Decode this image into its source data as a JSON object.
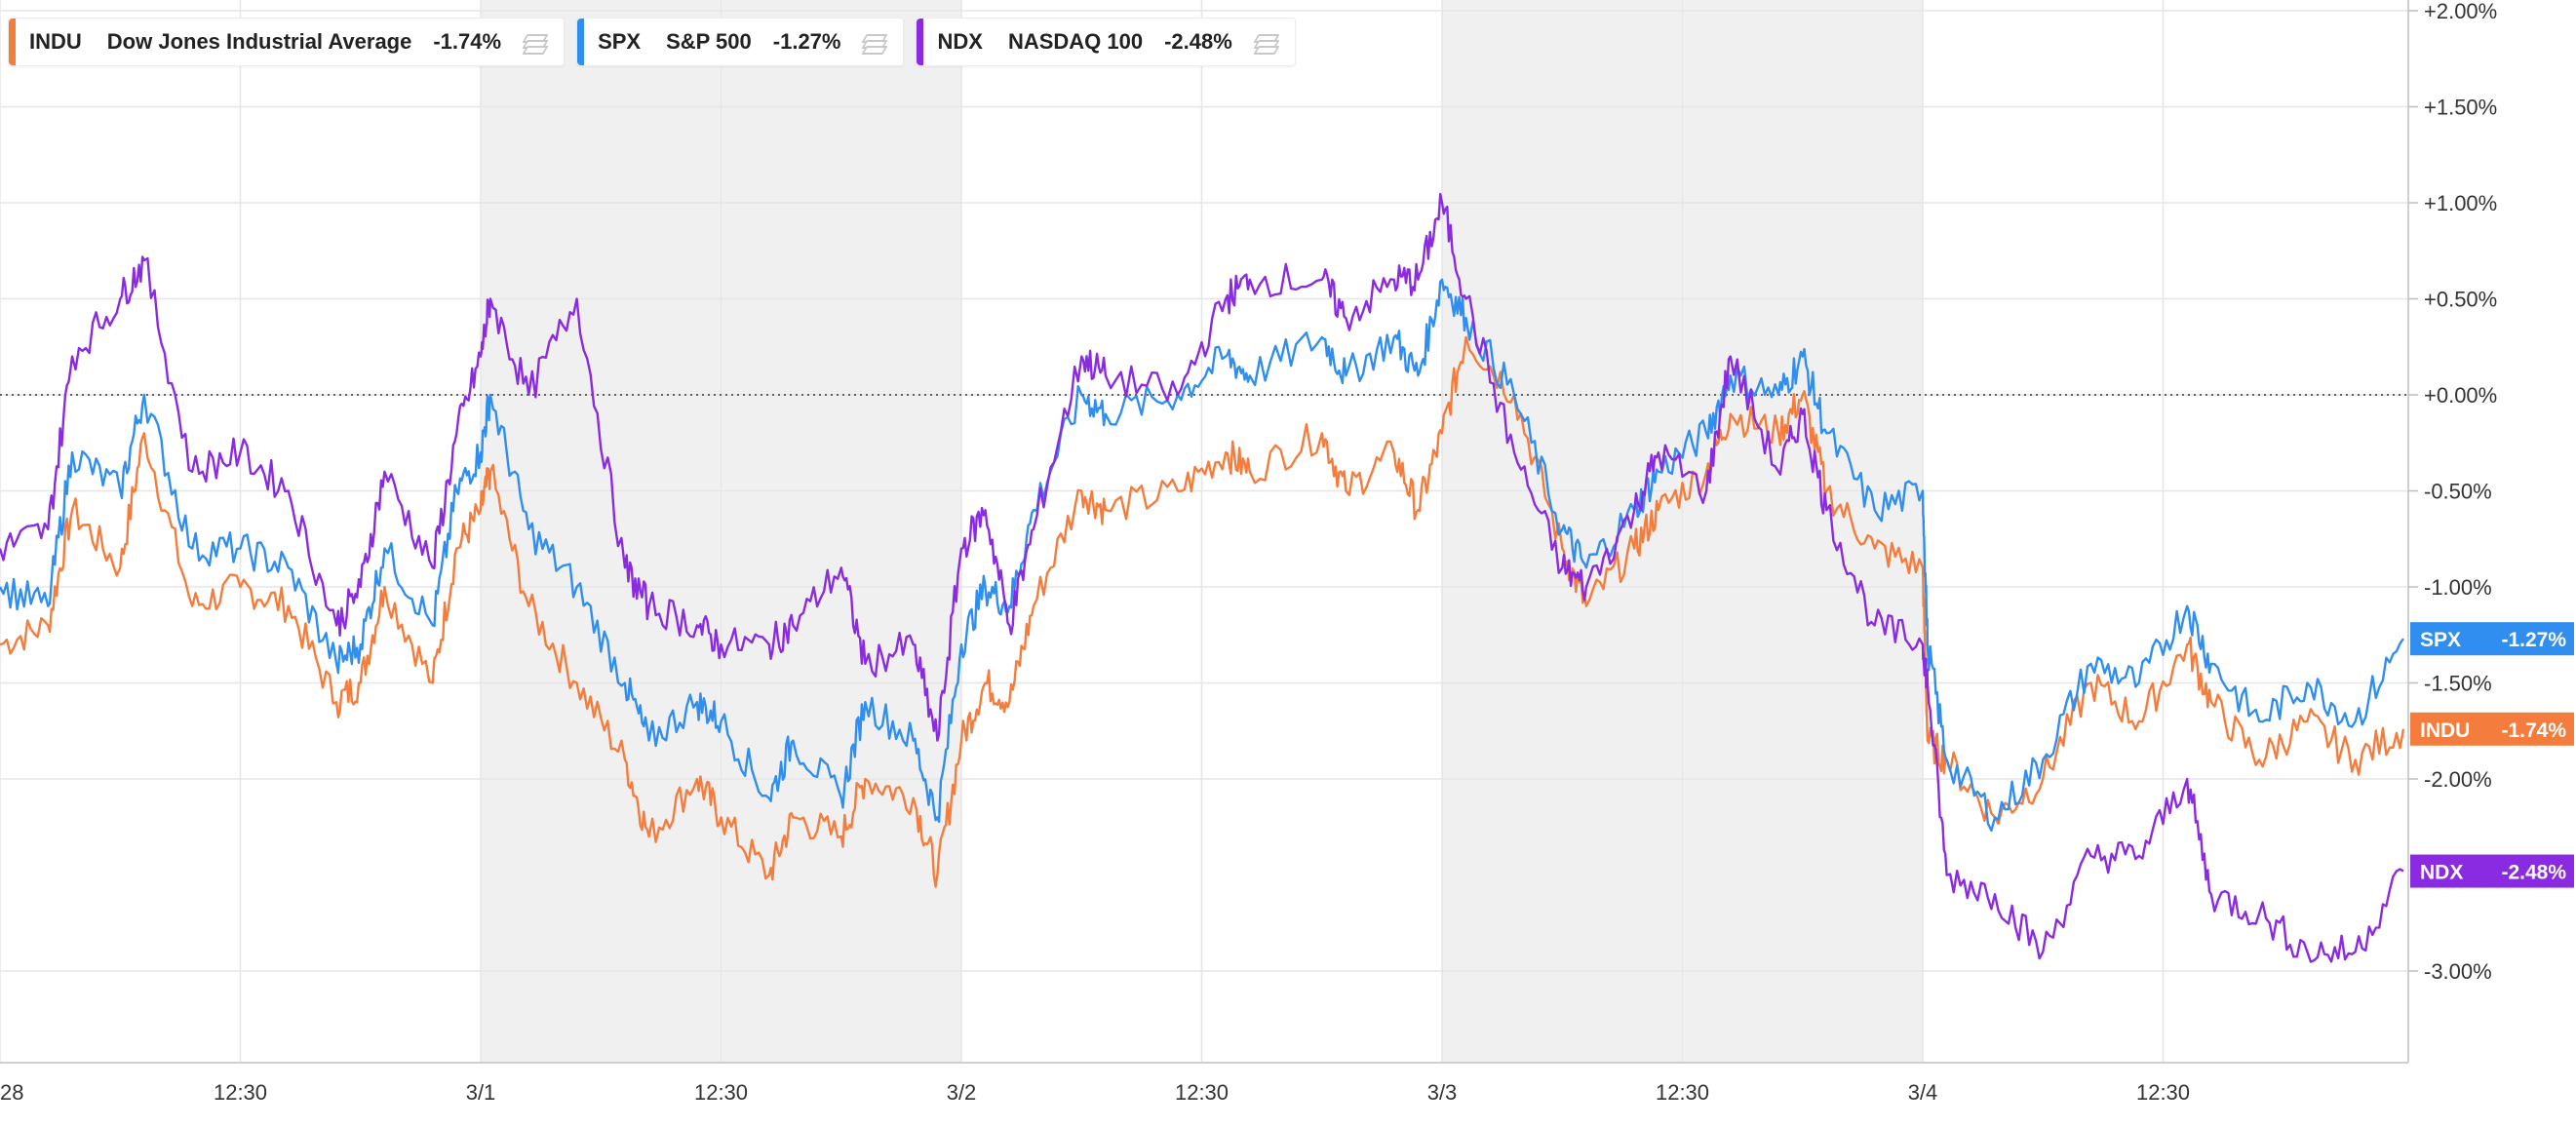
{
  "legend": [
    {
      "symbol": "INDU",
      "name": "Dow Jones Industrial Average",
      "change": "-1.74%",
      "color": "#f47c3c"
    },
    {
      "symbol": "SPX",
      "name": "S&P 500",
      "change": "-1.27%",
      "color": "#2f8ef0"
    },
    {
      "symbol": "NDX",
      "name": "NASDAQ 100",
      "change": "-2.48%",
      "color": "#8a2be2"
    }
  ],
  "chart_data": {
    "type": "line",
    "x_ticks": [
      "28",
      "12:30",
      "3/1",
      "12:30",
      "3/2",
      "12:30",
      "3/3",
      "12:30",
      "3/4",
      "12:30"
    ],
    "y_ticks": [
      "+2.00%",
      "+1.50%",
      "+1.00%",
      "+0.50%",
      "+0.00%",
      "-0.50%",
      "-1.00%",
      "-1.50%",
      "-2.00%",
      "-3.00%"
    ],
    "ylim": [
      -3.5,
      2.0
    ],
    "grid": true,
    "shaded_sessions": [
      [
        1.0,
        2.0
      ],
      [
        3.0,
        4.0
      ]
    ],
    "xlim": [
      0,
      5
    ],
    "series": [
      {
        "name": "INDU",
        "color": "#f47c3c",
        "last_label": "-1.74%",
        "x": [
          0,
          0.1,
          0.15,
          0.25,
          0.3,
          0.4,
          0.5,
          0.6,
          0.7,
          0.75,
          0.8,
          0.9,
          0.95,
          1.0,
          1.02,
          1.1,
          1.2,
          1.3,
          1.35,
          1.45,
          1.5,
          1.6,
          1.65,
          1.75,
          1.8,
          1.9,
          1.95,
          2.0,
          2.05,
          2.1,
          2.15,
          2.25,
          2.3,
          2.45,
          2.55,
          2.6,
          2.75,
          2.8,
          2.9,
          2.95,
          3.0,
          3.05,
          3.15,
          3.25,
          3.3,
          3.4,
          3.45,
          3.55,
          3.6,
          3.7,
          3.75,
          3.8,
          3.9,
          4.0,
          4.01,
          4.05,
          4.15,
          4.25,
          4.35,
          4.45,
          4.55,
          4.6,
          4.7,
          4.8,
          4.9,
          5.0
        ],
        "y": [
          -1.3,
          -1.2,
          -0.6,
          -0.9,
          -0.2,
          -1.1,
          -1.0,
          -1.1,
          -1.6,
          -1.5,
          -1.0,
          -1.5,
          -0.8,
          -0.6,
          -0.4,
          -1.1,
          -1.5,
          -1.9,
          -2.3,
          -2.0,
          -2.2,
          -2.5,
          -2.2,
          -2.3,
          -2.0,
          -2.1,
          -2.5,
          -1.8,
          -1.5,
          -1.6,
          -1.1,
          -0.5,
          -0.6,
          -0.5,
          -0.3,
          -0.4,
          -0.2,
          -0.5,
          -0.3,
          -0.6,
          -0.2,
          0.3,
          0.0,
          -0.8,
          -1.1,
          -0.8,
          -0.6,
          -0.4,
          -0.1,
          -0.2,
          0.0,
          -0.5,
          -0.8,
          -0.9,
          -1.8,
          -1.9,
          -2.2,
          -2.0,
          -1.5,
          -1.7,
          -1.3,
          -1.6,
          -1.9,
          -1.7,
          -1.9,
          -1.74
        ]
      },
      {
        "name": "SPX",
        "color": "#2f8ef0",
        "last_label": "-1.27%",
        "x": [
          0,
          0.1,
          0.15,
          0.25,
          0.3,
          0.4,
          0.5,
          0.6,
          0.7,
          0.75,
          0.8,
          0.9,
          0.95,
          1.0,
          1.02,
          1.1,
          1.2,
          1.3,
          1.35,
          1.45,
          1.5,
          1.6,
          1.65,
          1.75,
          1.8,
          1.9,
          1.95,
          2.0,
          2.05,
          2.1,
          2.15,
          2.25,
          2.3,
          2.45,
          2.55,
          2.6,
          2.75,
          2.8,
          2.9,
          2.95,
          3.0,
          3.05,
          3.15,
          3.25,
          3.3,
          3.4,
          3.45,
          3.55,
          3.6,
          3.7,
          3.75,
          3.8,
          3.9,
          4.0,
          4.01,
          4.05,
          4.15,
          4.25,
          4.35,
          4.45,
          4.55,
          4.6,
          4.7,
          4.8,
          4.9,
          5.0
        ],
        "y": [
          -1.0,
          -1.1,
          -0.3,
          -0.5,
          0.0,
          -0.8,
          -0.8,
          -0.9,
          -1.4,
          -1.3,
          -0.8,
          -1.2,
          -0.5,
          -0.3,
          0.0,
          -0.7,
          -1.0,
          -1.5,
          -1.8,
          -1.6,
          -1.7,
          -2.1,
          -1.8,
          -2.1,
          -1.6,
          -1.8,
          -2.2,
          -1.3,
          -1.0,
          -1.1,
          -0.6,
          0.0,
          -0.1,
          0.0,
          0.2,
          0.1,
          0.3,
          0.1,
          0.3,
          0.1,
          0.6,
          0.4,
          0.0,
          -0.7,
          -0.9,
          -0.6,
          -0.4,
          -0.2,
          0.1,
          0.0,
          0.2,
          -0.2,
          -0.6,
          -0.5,
          -1.3,
          -1.9,
          -2.2,
          -1.9,
          -1.4,
          -1.5,
          -1.1,
          -1.4,
          -1.7,
          -1.5,
          -1.7,
          -1.27
        ]
      },
      {
        "name": "NDX",
        "color": "#8a2be2",
        "last_label": "-2.48%",
        "x": [
          0,
          0.1,
          0.15,
          0.25,
          0.3,
          0.4,
          0.5,
          0.6,
          0.7,
          0.75,
          0.8,
          0.9,
          0.95,
          1.0,
          1.02,
          1.1,
          1.2,
          1.3,
          1.35,
          1.45,
          1.5,
          1.6,
          1.65,
          1.75,
          1.8,
          1.9,
          1.95,
          2.0,
          2.05,
          2.1,
          2.15,
          2.25,
          2.3,
          2.45,
          2.55,
          2.6,
          2.75,
          2.8,
          2.9,
          2.95,
          3.0,
          3.05,
          3.15,
          3.25,
          3.3,
          3.4,
          3.45,
          3.55,
          3.6,
          3.7,
          3.75,
          3.8,
          3.9,
          4.0,
          4.01,
          4.05,
          4.15,
          4.25,
          4.35,
          4.45,
          4.55,
          4.6,
          4.7,
          4.8,
          4.9,
          5.0
        ],
        "y": [
          -0.8,
          -0.7,
          0.2,
          0.5,
          0.7,
          -0.4,
          -0.3,
          -0.5,
          -1.2,
          -1.0,
          -0.4,
          -0.9,
          -0.2,
          0.2,
          0.5,
          0.0,
          0.5,
          -0.9,
          -1.1,
          -1.2,
          -1.3,
          -1.3,
          -1.2,
          -0.9,
          -1.4,
          -1.3,
          -1.8,
          -0.8,
          -0.6,
          -1.2,
          -0.7,
          0.2,
          0.1,
          0.0,
          0.5,
          0.6,
          0.6,
          0.4,
          0.6,
          0.6,
          1.0,
          0.5,
          -0.3,
          -0.9,
          -1.0,
          -0.6,
          -0.3,
          -0.5,
          0.2,
          -0.4,
          -0.1,
          -0.6,
          -1.2,
          -1.3,
          -1.5,
          -2.5,
          -2.6,
          -2.9,
          -2.4,
          -2.4,
          -2.0,
          -2.6,
          -2.7,
          -2.9,
          -2.9,
          -2.48
        ]
      }
    ]
  }
}
